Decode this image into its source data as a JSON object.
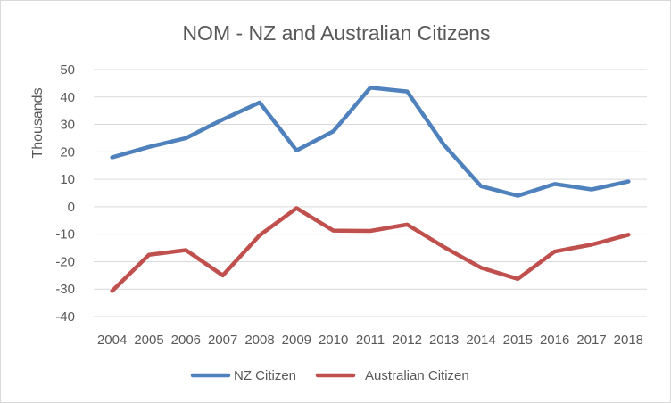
{
  "chart_data": {
    "type": "line",
    "title": "NOM - NZ and Australian Citizens",
    "ylabel": "Thousands",
    "xlabel": "",
    "ylim": [
      -40,
      50
    ],
    "yticks": [
      50,
      40,
      30,
      20,
      10,
      0,
      -10,
      -20,
      -30,
      -40
    ],
    "grid": true,
    "legend_position": "bottom",
    "categories": [
      "2004",
      "2005",
      "2006",
      "2007",
      "2008",
      "2009",
      "2010",
      "2011",
      "2012",
      "2013",
      "2014",
      "2015",
      "2016",
      "2017",
      "2018"
    ],
    "series": [
      {
        "name": "NZ Citizen",
        "color": "#4f81bd",
        "values": [
          18,
          21.8,
          25,
          31.8,
          38,
          20.5,
          27.5,
          43.4,
          42,
          22.5,
          7.5,
          4,
          8.3,
          6.3,
          9.2
        ]
      },
      {
        "name": "Australian Citizen",
        "color": "#c0504d",
        "values": [
          -30.7,
          -17.5,
          -15.8,
          -25,
          -10.4,
          -0.5,
          -8.7,
          -8.8,
          -6.5,
          -14.7,
          -22.2,
          -26.3,
          -16.3,
          -13.8,
          -10.2
        ]
      }
    ]
  }
}
